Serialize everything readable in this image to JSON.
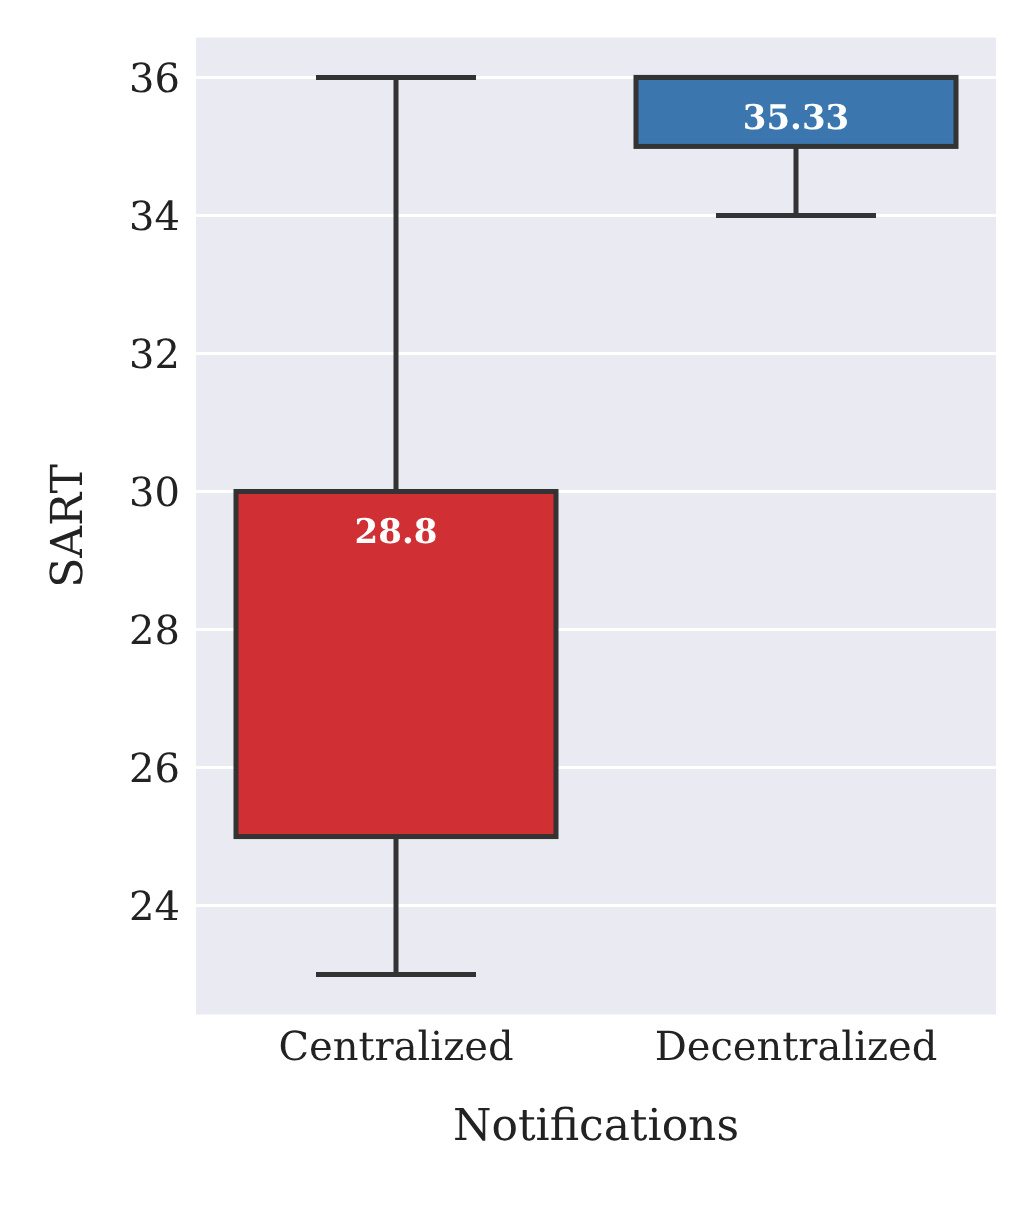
{
  "chart_data": {
    "type": "box",
    "xlabel": "Notifications",
    "ylabel": "SART",
    "categories": [
      "Centralized",
      "Decentralized"
    ],
    "boxes": [
      {
        "low": 23,
        "q1": 25,
        "median": 30,
        "q3": 30,
        "high": 36
      },
      {
        "low": 34,
        "q1": 35,
        "median": 36,
        "q3": 36,
        "high": 36
      }
    ],
    "annotations": [
      "28.8",
      "35.33"
    ],
    "colors": [
      "#d02f33",
      "#3b76ae"
    ],
    "ylim": [
      22.4,
      36.6
    ],
    "yticks": [
      24,
      26,
      28,
      30,
      32,
      34,
      36
    ],
    "grid": "y"
  }
}
